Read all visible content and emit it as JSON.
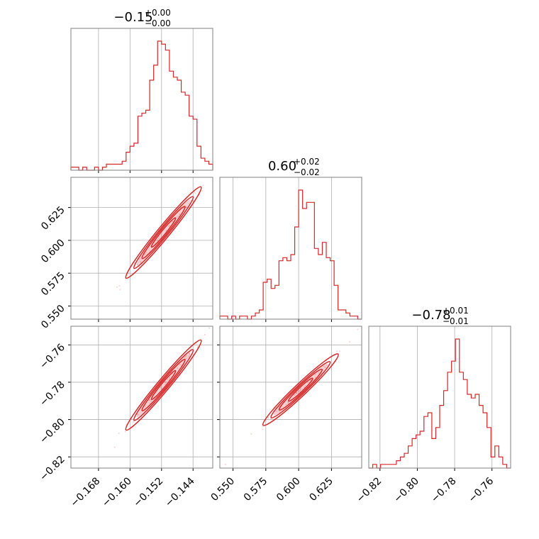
{
  "colors": {
    "series": "#d62728",
    "grid": "#b0b0b0",
    "frame": "#808080"
  },
  "chart_data": [
    {
      "type": "histogram",
      "panel": "p1-marginal",
      "title": {
        "value": "−0.15",
        "plus": "+0.00",
        "minus": "−0.00"
      },
      "x_range": [
        -0.175,
        -0.139
      ],
      "x_ticks": [
        -0.168,
        -0.16,
        -0.152,
        -0.144
      ],
      "bins": 36,
      "counts": [
        1,
        1,
        0,
        1,
        0,
        0,
        1,
        0,
        1,
        2,
        2,
        2,
        2,
        3,
        6,
        8,
        9,
        18,
        19,
        20,
        30,
        35,
        43,
        42,
        40,
        33,
        31,
        30,
        26,
        25,
        18,
        17,
        8,
        4,
        3,
        2
      ]
    },
    {
      "type": "histogram",
      "panel": "p2-marginal",
      "title": {
        "value": "0.60",
        "plus": "+0.02",
        "minus": "−0.02"
      },
      "x_range": [
        0.54,
        0.648
      ],
      "x_ticks": [
        0.55,
        0.575,
        0.6,
        0.625
      ],
      "bins": 36,
      "counts": [
        1,
        1,
        0,
        1,
        0,
        1,
        1,
        0,
        1,
        2,
        3,
        12,
        13,
        10,
        11,
        19,
        20,
        19,
        21,
        30,
        42,
        36,
        38,
        38,
        23,
        21,
        25,
        20,
        19,
        11,
        3,
        3,
        2,
        1,
        1,
        0
      ]
    },
    {
      "type": "histogram",
      "panel": "p3-marginal",
      "title": {
        "value": "−0.78",
        "plus": "+0.01",
        "minus": "−0.01"
      },
      "x_range": [
        -0.826,
        -0.75
      ],
      "x_ticks": [
        -0.82,
        -0.8,
        -0.78,
        -0.76
      ],
      "bins": 36,
      "counts": [
        0,
        1,
        0,
        1,
        1,
        1,
        1,
        2,
        3,
        4,
        6,
        8,
        9,
        10,
        14,
        15,
        8,
        11,
        17,
        21,
        26,
        29,
        35,
        26,
        24,
        20,
        19,
        20,
        17,
        15,
        11,
        3,
        6,
        3,
        1,
        0
      ]
    },
    {
      "type": "contour-scatter",
      "panel": "p2-vs-p1",
      "x_range": [
        -0.175,
        -0.139
      ],
      "y_range": [
        0.54,
        0.648
      ],
      "x_ticks": [
        -0.168,
        -0.16,
        -0.152,
        -0.144
      ],
      "y_ticks": [
        0.55,
        0.575,
        0.6,
        0.625
      ],
      "center": [
        -0.1515,
        0.605
      ],
      "ridge": [
        [
          -0.16,
          0.575
        ],
        [
          -0.143,
          0.637
        ]
      ],
      "levels": 4
    },
    {
      "type": "contour-scatter",
      "panel": "p3-vs-p1",
      "x_range": [
        -0.175,
        -0.139
      ],
      "y_range": [
        -0.826,
        -0.75
      ],
      "x_ticks": [
        -0.168,
        -0.16,
        -0.152,
        -0.144
      ],
      "y_ticks": [
        -0.82,
        -0.8,
        -0.78,
        -0.76
      ],
      "center": [
        -0.1515,
        -0.782
      ],
      "ridge": [
        [
          -0.16,
          -0.803
        ],
        [
          -0.143,
          -0.76
        ]
      ],
      "levels": 4
    },
    {
      "type": "contour-scatter",
      "panel": "p3-vs-p2",
      "x_range": [
        0.54,
        0.648
      ],
      "y_range": [
        -0.826,
        -0.75
      ],
      "x_ticks": [
        0.55,
        0.575,
        0.6,
        0.625
      ],
      "y_ticks": [
        -0.82,
        -0.8,
        -0.78,
        -0.76
      ],
      "center": [
        0.601,
        -0.785
      ],
      "ridge": [
        [
          0.576,
          -0.801
        ],
        [
          0.627,
          -0.767
        ]
      ],
      "levels": 4
    }
  ]
}
